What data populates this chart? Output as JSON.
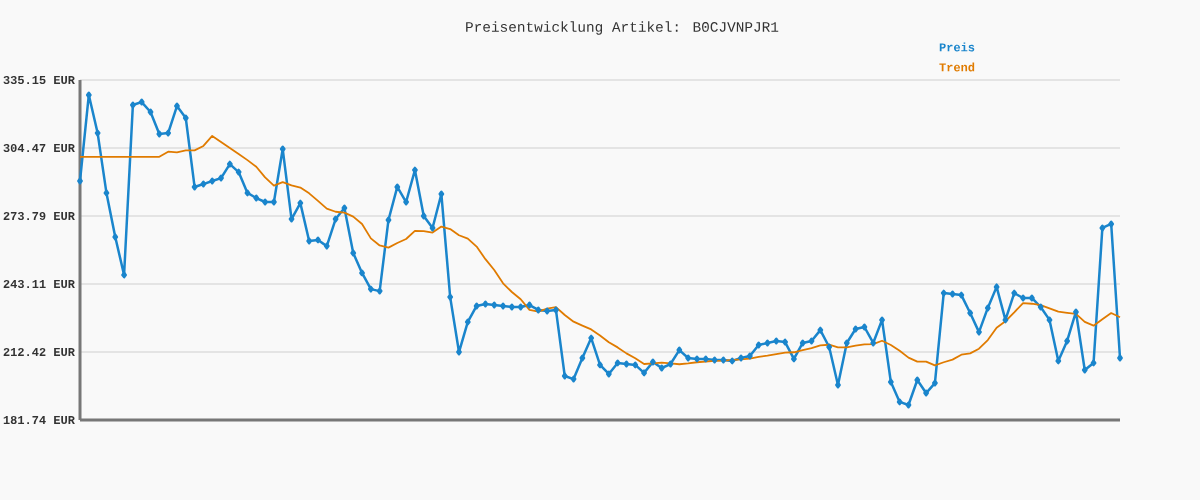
{
  "chart_data": {
    "type": "line",
    "title": "Preisentwicklung Artikel: B0CJVNPJR1",
    "categories": [
      null,
      null,
      null,
      null,
      null,
      null,
      null,
      null,
      null,
      null,
      null,
      null,
      null,
      null,
      null,
      null,
      null,
      null,
      null,
      null,
      null,
      null,
      null,
      null,
      null,
      null,
      null,
      null,
      null,
      null,
      null,
      null,
      null,
      null,
      null,
      null,
      null,
      null,
      null,
      null,
      null,
      null,
      null,
      null,
      null,
      null,
      null,
      null,
      null,
      null,
      null,
      null,
      null,
      null,
      null,
      null,
      null,
      null,
      null,
      null,
      null,
      null,
      null,
      null,
      null,
      null,
      null,
      null,
      null,
      null,
      null,
      null,
      null,
      null,
      null,
      null,
      null,
      null,
      null,
      null,
      null,
      null,
      null,
      null,
      null,
      null,
      null,
      null,
      null,
      null,
      null,
      null,
      null,
      null,
      null,
      null,
      null,
      null,
      null,
      null,
      null,
      null,
      null,
      null,
      null,
      null,
      null,
      null,
      null,
      null,
      null,
      null,
      null,
      null,
      null,
      null,
      null,
      null,
      null
    ],
    "series": [
      {
        "name": "Preis",
        "color": "#1a85cc",
        "marker": "diamond",
        "values": [
          289.6,
          328.4,
          311.2,
          284.2,
          264.3,
          247.2,
          323.9,
          325.2,
          320.7,
          310.8,
          311.2,
          323.4,
          318.0,
          286.9,
          288.2,
          289.6,
          290.9,
          297.2,
          293.6,
          284.2,
          281.9,
          280.1,
          280.1,
          304.0,
          272.4,
          279.6,
          262.5,
          263.0,
          260.2,
          272.4,
          277.4,
          257.1,
          248.1,
          240.8,
          239.9,
          272.0,
          286.9,
          280.1,
          294.5,
          273.8,
          268.4,
          283.7,
          237.2,
          212.4,
          226.0,
          233.2,
          234.1,
          233.6,
          233.2,
          232.7,
          232.7,
          233.6,
          231.4,
          230.9,
          231.4,
          201.6,
          200.2,
          209.7,
          218.7,
          206.6,
          202.5,
          207.5,
          207.0,
          206.6,
          203.0,
          207.9,
          205.2,
          207.0,
          213.3,
          209.7,
          209.3,
          209.3,
          208.8,
          208.8,
          208.4,
          209.7,
          210.6,
          215.6,
          216.5,
          217.4,
          216.9,
          209.3,
          216.5,
          217.4,
          222.3,
          214.7,
          197.5,
          216.5,
          222.8,
          223.7,
          216.5,
          226.9,
          198.9,
          189.9,
          188.5,
          199.8,
          193.9,
          198.4,
          239.0,
          238.6,
          238.1,
          230.0,
          221.4,
          232.3,
          241.8,
          226.9,
          239.0,
          236.8,
          236.8,
          232.7,
          226.9,
          208.4,
          217.4,
          230.5,
          204.3,
          207.5,
          268.4,
          270.2,
          209.7
        ]
      },
      {
        "name": "Trend",
        "color": "#e07b00",
        "marker": "none",
        "values": [
          300.5,
          300.5,
          300.5,
          300.5,
          300.5,
          300.5,
          300.5,
          300.5,
          300.5,
          300.5,
          302.8,
          302.5,
          303.4,
          303.4,
          305.4,
          309.9,
          307.2,
          304.5,
          301.8,
          299.0,
          296.0,
          291.2,
          287.5,
          289.1,
          287.6,
          286.6,
          284.0,
          280.6,
          277.1,
          275.7,
          275.3,
          273.5,
          270.2,
          263.7,
          260.5,
          259.5,
          261.6,
          263.4,
          267.1,
          267.0,
          266.3,
          269.0,
          267.9,
          265.1,
          263.6,
          260.0,
          254.3,
          249.4,
          243.4,
          239.5,
          236.2,
          231.4,
          230.6,
          232.0,
          232.7,
          229.1,
          226.1,
          224.3,
          222.6,
          219.9,
          216.8,
          214.5,
          211.8,
          209.6,
          207.0,
          207.3,
          207.6,
          207.3,
          206.9,
          207.3,
          207.8,
          208.1,
          208.4,
          208.5,
          208.8,
          209.1,
          209.4,
          210.2,
          210.8,
          211.5,
          212.1,
          212.3,
          213.3,
          214.2,
          215.4,
          215.7,
          214.5,
          214.5,
          215.3,
          215.9,
          216.0,
          217.5,
          215.6,
          213.0,
          209.9,
          208.1,
          208.1,
          206.4,
          207.8,
          209.0,
          211.2,
          211.8,
          213.9,
          217.8,
          223.4,
          226.3,
          230.3,
          234.5,
          234.2,
          233.6,
          232.1,
          230.6,
          230.1,
          229.6,
          226.0,
          224.3,
          227.2,
          230.0,
          228.1
        ]
      }
    ],
    "ylim": [
      181.74,
      335.15
    ],
    "yticks": [
      {
        "value": 181.74,
        "label": "181.74 EUR"
      },
      {
        "value": 212.42,
        "label": "212.42 EUR"
      },
      {
        "value": 243.11,
        "label": "243.11 EUR"
      },
      {
        "value": 273.79,
        "label": "273.79 EUR"
      },
      {
        "value": 304.47,
        "label": "304.47 EUR"
      },
      {
        "value": 335.15,
        "label": "335.15 EUR"
      }
    ],
    "grid": "y",
    "legend": "top right",
    "tick_labels": "y",
    "line_style": "solid"
  }
}
